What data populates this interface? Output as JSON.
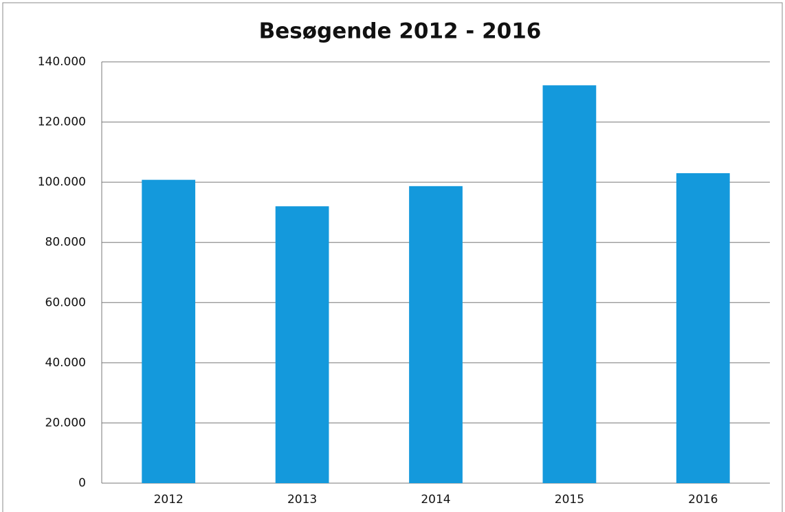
{
  "chart_data": {
    "type": "bar",
    "title": "Besøgende 2012 - 2016",
    "categories": [
      "2012",
      "2013",
      "2014",
      "2015",
      "2016"
    ],
    "values": [
      100800,
      92000,
      98700,
      132200,
      103000
    ],
    "color": "#1499dc",
    "ylim": [
      0,
      140000
    ],
    "yticks": [
      0,
      {
        "value": 20000,
        "label": "20.000"
      },
      {
        "value": 40000,
        "label": "40.000"
      },
      {
        "value": 60000,
        "label": "60.000"
      },
      {
        "value": 80000,
        "label": "80.000"
      },
      {
        "value": 100000,
        "label": "100.000"
      },
      {
        "value": 120000,
        "label": "120.000"
      },
      {
        "value": 140000,
        "label": "140.000"
      }
    ],
    "grid": true
  }
}
